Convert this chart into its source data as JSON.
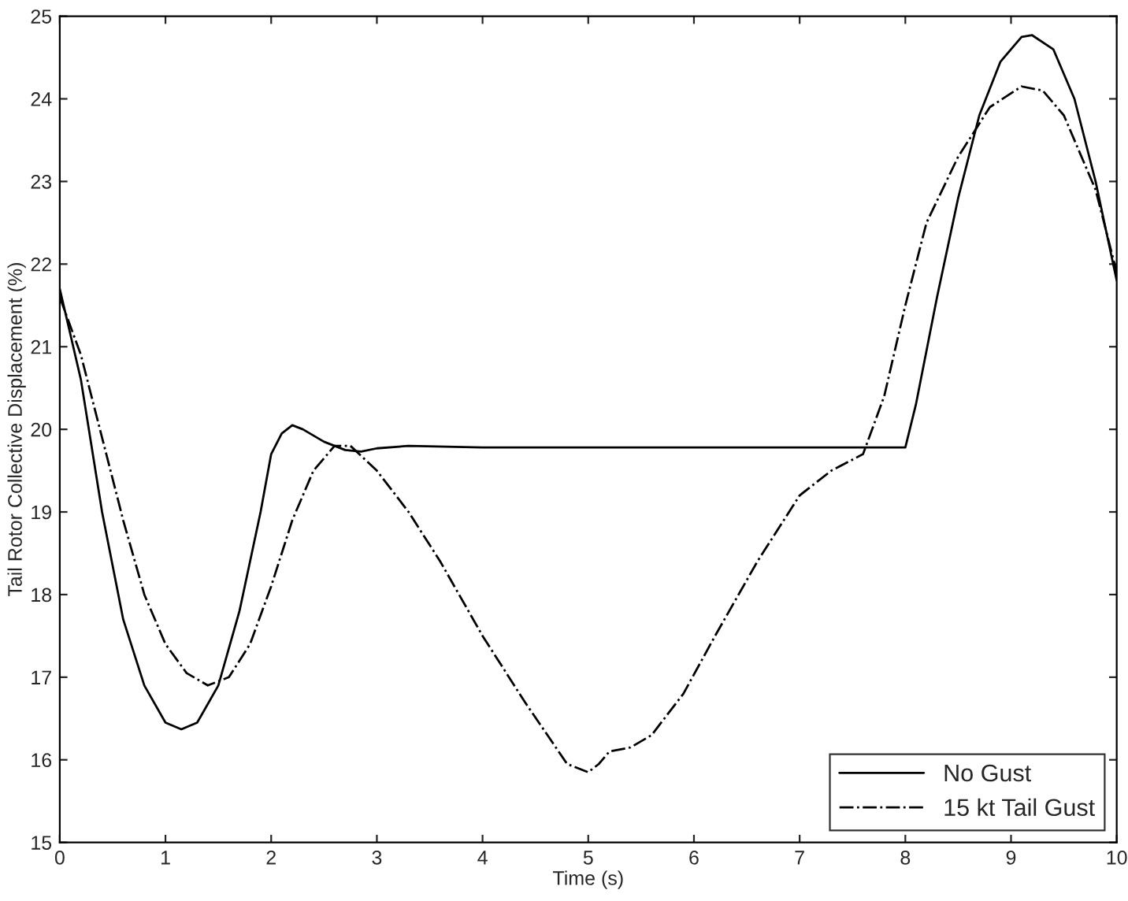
{
  "chart_data": {
    "type": "line",
    "xlabel": "Time (s)",
    "ylabel": "Tail Rotor Collective Displacement (%)",
    "xlim": [
      0,
      10
    ],
    "ylim": [
      15,
      25
    ],
    "xticks": [
      0,
      1,
      2,
      3,
      4,
      5,
      6,
      7,
      8,
      9,
      10
    ],
    "yticks": [
      15,
      16,
      17,
      18,
      19,
      20,
      21,
      22,
      23,
      24,
      25
    ],
    "grid": false,
    "legend": "bottom right",
    "marker": "none",
    "series": [
      {
        "name": "No Gust",
        "color": "#000000",
        "line_style": "solid",
        "x": [
          0,
          0.2,
          0.4,
          0.6,
          0.8,
          1.0,
          1.15,
          1.3,
          1.5,
          1.7,
          1.9,
          2.0,
          2.1,
          2.2,
          2.3,
          2.5,
          2.7,
          2.85,
          3.0,
          3.3,
          4,
          5,
          6,
          7,
          8.0,
          8.1,
          8.3,
          8.5,
          8.7,
          8.9,
          9.1,
          9.2,
          9.4,
          9.6,
          9.8,
          10
        ],
        "values": [
          21.7,
          20.6,
          19.0,
          17.7,
          16.9,
          16.45,
          16.37,
          16.45,
          16.9,
          17.8,
          19.0,
          19.7,
          19.95,
          20.05,
          20.0,
          19.85,
          19.75,
          19.73,
          19.77,
          19.8,
          19.78,
          19.78,
          19.78,
          19.78,
          19.78,
          20.3,
          21.6,
          22.8,
          23.8,
          24.45,
          24.75,
          24.77,
          24.6,
          24.0,
          23.0,
          21.8
        ]
      },
      {
        "name": "15 kt Tail Gust",
        "color": "#000000",
        "line_style": "dashdot",
        "x": [
          0,
          0.2,
          0.4,
          0.6,
          0.8,
          1.0,
          1.2,
          1.4,
          1.6,
          1.8,
          2.0,
          2.2,
          2.4,
          2.6,
          2.75,
          3.0,
          3.3,
          3.6,
          4.0,
          4.4,
          4.8,
          5.0,
          5.1,
          5.2,
          5.4,
          5.6,
          5.9,
          6.2,
          6.6,
          7.0,
          7.3,
          7.6,
          7.8,
          8.0,
          8.2,
          8.5,
          8.8,
          9.1,
          9.3,
          9.5,
          9.8,
          10
        ],
        "values": [
          21.6,
          20.9,
          19.9,
          18.9,
          18.0,
          17.4,
          17.05,
          16.9,
          17.0,
          17.4,
          18.1,
          18.9,
          19.5,
          19.8,
          19.8,
          19.5,
          19.0,
          18.4,
          17.5,
          16.7,
          15.95,
          15.85,
          15.95,
          16.1,
          16.15,
          16.3,
          16.8,
          17.5,
          18.4,
          19.2,
          19.5,
          19.7,
          20.4,
          21.5,
          22.5,
          23.3,
          23.9,
          24.15,
          24.1,
          23.8,
          22.9,
          21.9
        ]
      }
    ]
  }
}
